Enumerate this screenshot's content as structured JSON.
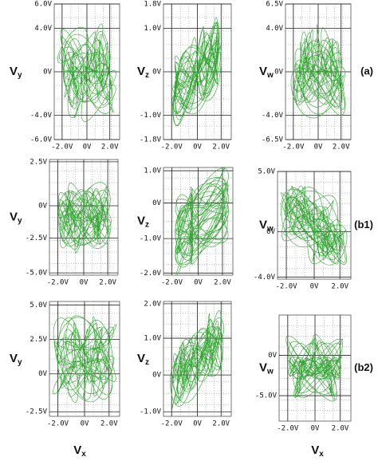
{
  "rows": [
    {
      "label": "(a)",
      "panels": [
        {
          "y_label": {
            "main": "V",
            "sub": "y"
          },
          "y_ticks": [
            "6.0V",
            "4.0V",
            "0V",
            "-4.0V",
            "-6.0V"
          ],
          "x_ticks": [
            "-2.0V",
            "0V",
            "2.0V"
          ]
        },
        {
          "y_label": {
            "main": "V",
            "sub": "z"
          },
          "y_ticks": [
            "1.8V",
            "1.0V",
            "0V",
            "-1.0V",
            "-1.8V"
          ],
          "x_ticks": [
            "-2.0V",
            "0V",
            "2.0V"
          ]
        },
        {
          "y_label": {
            "main": "V",
            "sub": "w"
          },
          "y_ticks": [
            "6.5V",
            "4.0V",
            "0V",
            "-4.0V",
            "-6.5V"
          ],
          "x_ticks": [
            "-2.0V",
            "0V",
            "2.0V"
          ]
        }
      ]
    },
    {
      "label": "(b1)",
      "panels": [
        {
          "y_label": {
            "main": "V",
            "sub": "y"
          },
          "y_ticks": [
            "2.5V",
            "0V",
            "-2.5V",
            "-5.0V"
          ],
          "x_ticks": [
            "-2.0V",
            "0V",
            "2.0V"
          ]
        },
        {
          "y_label": {
            "main": "V",
            "sub": "z"
          },
          "y_ticks": [
            "1.0V",
            "0V",
            "-1.0V",
            "-2.0V"
          ],
          "x_ticks": [
            "-2.0V",
            "0V",
            "2.0V"
          ]
        },
        {
          "y_label": {
            "main": "V",
            "sub": "w"
          },
          "y_ticks": [
            "5.0V",
            "0V",
            "-4.0V"
          ],
          "x_ticks": [
            "-2.0V",
            "0V",
            "2.0V"
          ]
        }
      ]
    },
    {
      "label": "(b2)",
      "panels": [
        {
          "y_label": {
            "main": "V",
            "sub": "y"
          },
          "y_ticks": [
            "5.0V",
            "2.5V",
            "0V",
            "-2.5V"
          ],
          "x_ticks": [
            "-2.0V",
            "0V",
            "2.0V"
          ]
        },
        {
          "y_label": {
            "main": "V",
            "sub": "z"
          },
          "y_ticks": [
            "2.0V",
            "1.0V",
            "0V",
            "-1.0V"
          ],
          "x_ticks": [
            "-2.0V",
            "0V",
            "2.0V"
          ]
        },
        {
          "y_label": {
            "main": "V",
            "sub": "w"
          },
          "y_ticks": [
            "0V",
            "-5.0V"
          ],
          "x_ticks": [
            "-2.0V",
            "0V",
            "2.0V"
          ]
        }
      ]
    }
  ],
  "x_labels": [
    {
      "main": "V",
      "sub": "x"
    },
    {
      "main": "V",
      "sub": "x"
    }
  ]
}
